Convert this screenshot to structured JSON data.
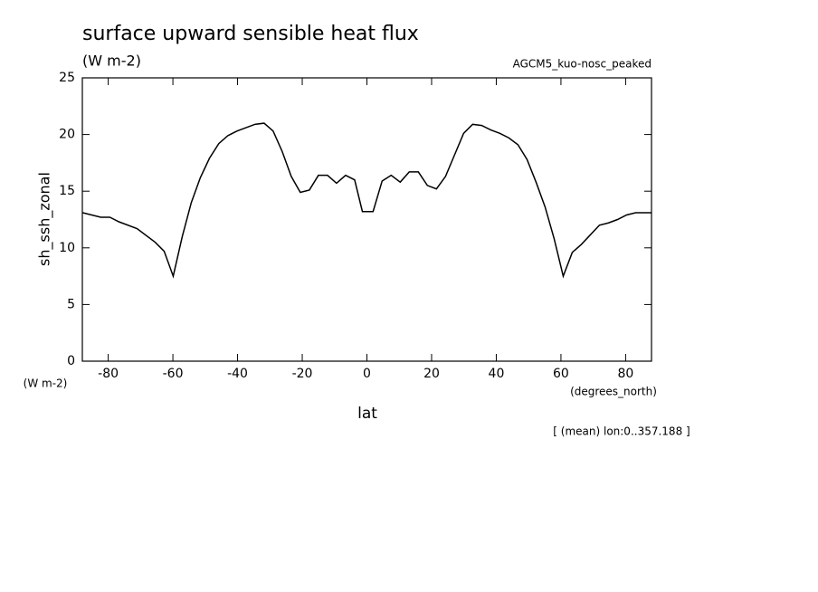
{
  "chart_data": {
    "type": "line",
    "title": "surface upward sensible heat flux",
    "subtitle": "(W m-2)",
    "dataset": "AGCM5_kuo-nosc_peaked",
    "y_label": "sh_ssh_zonal",
    "y_units": "(W m-2)",
    "x_label": "lat",
    "x_units": "(degrees_north)",
    "note": "[ (mean) lon:0..357.188 ]",
    "x": [
      -87.9,
      -82.3,
      -79.5,
      -76.7,
      -71.1,
      -65.5,
      -62.7,
      -59.9,
      -57.1,
      -54.3,
      -51.5,
      -48.7,
      -45.8,
      -43.0,
      -40.2,
      -37.4,
      -34.6,
      -31.8,
      -29.0,
      -26.2,
      -23.4,
      -20.6,
      -17.8,
      -15.0,
      -12.2,
      -9.4,
      -6.6,
      -3.8,
      -1.4,
      1.9,
      4.7,
      7.5,
      10.3,
      13.1,
      15.9,
      18.7,
      21.5,
      24.3,
      27.1,
      29.9,
      32.7,
      35.5,
      38.3,
      41.1,
      43.9,
      46.7,
      49.5,
      52.3,
      55.1,
      57.9,
      60.7,
      63.5,
      66.3,
      71.9,
      74.7,
      77.5,
      80.3,
      83.1,
      87.9
    ],
    "series": [
      {
        "name": "sh_ssh_zonal",
        "color": "#000000",
        "values": [
          13.1,
          12.7,
          12.7,
          12.3,
          11.7,
          10.5,
          9.7,
          7.5,
          11.0,
          14.0,
          16.2,
          17.9,
          19.2,
          19.9,
          20.3,
          20.6,
          20.9,
          21.0,
          20.3,
          18.5,
          16.3,
          14.9,
          15.1,
          16.4,
          16.4,
          15.7,
          16.4,
          16.0,
          13.2,
          13.2,
          15.9,
          16.4,
          15.8,
          16.7,
          16.7,
          15.5,
          15.2,
          16.3,
          18.2,
          20.1,
          20.9,
          20.8,
          20.4,
          20.1,
          19.7,
          19.1,
          17.8,
          15.8,
          13.6,
          10.8,
          7.5,
          9.6,
          10.3,
          12.0,
          12.2,
          12.5,
          12.9,
          13.1,
          13.1
        ]
      }
    ],
    "xlim": [
      -88,
      88
    ],
    "xticks": [
      -80,
      -60,
      -40,
      -20,
      0,
      20,
      40,
      60,
      80
    ],
    "ylim": [
      0,
      25
    ],
    "yticks": [
      0,
      5,
      10,
      15,
      20,
      25
    ]
  }
}
